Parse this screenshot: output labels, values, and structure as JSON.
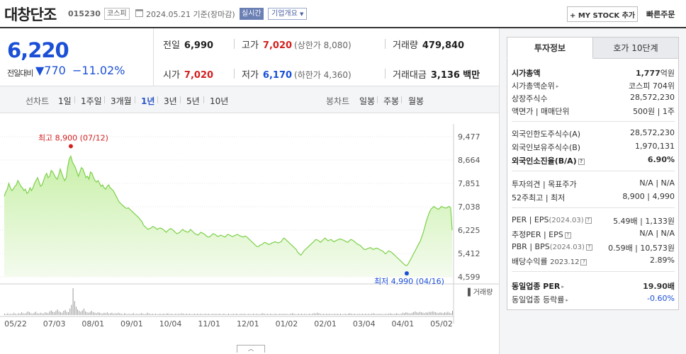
{
  "header": {
    "company": "대창단조",
    "code": "015230",
    "market": "코스피",
    "date": "2024.05.21 기준(장마감)",
    "live": "실시간",
    "overview": "기업개요",
    "mystock_btn": "+ MY STOCK 추가",
    "quick_order": "빠른주문"
  },
  "quote": {
    "price": "6,220",
    "prev_label": "전일대비",
    "change": "▼770",
    "change_rate": "−11.02%",
    "prev_close_label": "전일",
    "prev_close": "6,990",
    "high_label": "고가",
    "high": "7,020",
    "upper_limit": "(상한가 8,080)",
    "volume_label": "거래량",
    "volume": "479,840",
    "open_label": "시가",
    "open": "7,020",
    "low_label": "저가",
    "low": "6,170",
    "lower_limit": "(하한가 4,360)",
    "amount_label": "거래대금",
    "amount": "3,136",
    "amount_unit": "백만"
  },
  "period_bar": {
    "line_label": "선차트",
    "periods": [
      "1일",
      "1주일",
      "3개월",
      "1년",
      "3년",
      "5년",
      "10년"
    ],
    "active_period": "1년",
    "candle_label": "봉차트",
    "candles": [
      "일봉",
      "주봉",
      "월봉"
    ]
  },
  "chart_data": {
    "type": "area",
    "ylim": [
      4599,
      9477
    ],
    "yticks": [
      "9,477",
      "8,664",
      "7,851",
      "7,038",
      "6,225",
      "5,412",
      "4,599"
    ],
    "xticks": [
      "05/22",
      "07/03",
      "08/01",
      "09/01",
      "10/04",
      "11/01",
      "12/01",
      "01/02",
      "02/01",
      "03/04",
      "04/01",
      "05/02"
    ],
    "high_annotation": "최고 8,900 (07/12)",
    "low_annotation": "최저 4,990 (04/16)",
    "volume_label": "거래량",
    "series": [
      {
        "values": [
          7400,
          7550,
          7650,
          7850,
          7700,
          7600,
          7650,
          7750,
          7800,
          7950,
          7850,
          7750,
          7700,
          7600,
          7650,
          7500,
          7550,
          7700,
          7600,
          7700,
          7850,
          7950,
          8050,
          7900,
          7750,
          7800,
          7950,
          8100,
          8200,
          8050,
          8100,
          8300,
          8250,
          8150,
          8050,
          8000,
          8150,
          8350,
          8200,
          8050,
          7950,
          8050,
          8450,
          8700,
          8800,
          8600,
          8500,
          8400,
          8250,
          8100,
          8250,
          8400,
          8350,
          8200,
          8050,
          8100,
          8000,
          8250,
          8200,
          8050,
          7950,
          7900,
          7950,
          7850,
          7750,
          7800,
          7700,
          7650,
          7750,
          7800,
          7700,
          7650,
          7600,
          7500,
          7400,
          7300,
          7200,
          7150,
          7100,
          7050,
          7000,
          6980,
          7000,
          6950,
          6900,
          6850,
          6800,
          6750,
          6700,
          6650,
          6580,
          6520,
          6400,
          6350,
          6300,
          6250,
          6280,
          6300,
          6350,
          6330,
          6300,
          6250,
          6280,
          6300,
          6280,
          6250,
          6200,
          6150,
          6200,
          6250,
          6280,
          6250,
          6200,
          6150,
          6100,
          6120,
          6150,
          6200,
          6250,
          6200,
          6180,
          6150,
          6170,
          6250,
          6200,
          6150,
          6100,
          6080,
          6050,
          6100,
          6150,
          6120,
          6100,
          6050,
          6000,
          5980,
          6000,
          6050,
          6100,
          6080,
          6050,
          6000,
          6020,
          6050,
          6030,
          6000,
          5980,
          6050,
          6080,
          6050,
          6020,
          6000,
          6030,
          6050,
          6080,
          6050,
          6020,
          6000,
          5980,
          6020,
          6000,
          5950,
          5900,
          5850,
          5800,
          5750,
          5700,
          5650,
          5650,
          5700,
          5720,
          5750,
          5800,
          5780,
          5750,
          5720,
          5750,
          5780,
          5800,
          5820,
          5800,
          5780,
          5800,
          5820,
          5900,
          5950,
          5900,
          5850,
          5800,
          5750,
          5700,
          5650,
          5600,
          5550,
          5450,
          5400,
          5350,
          5420,
          5500,
          5550,
          5600,
          5650,
          5700,
          5750,
          5800,
          5850,
          5900,
          5880,
          5850,
          5800,
          5850,
          5900,
          5950,
          5900,
          5850,
          5880,
          5900,
          5850,
          5820,
          5850,
          5880,
          5900,
          5920,
          5900,
          5880,
          5850,
          5820,
          5800,
          5850,
          5900,
          5880,
          5850,
          5800,
          5750,
          5720,
          5700,
          5650,
          5600,
          5550,
          5550,
          5580,
          5600,
          5620,
          5580,
          5550,
          5580,
          5600,
          5580,
          5550,
          5520,
          5500,
          5450,
          5400,
          5450,
          5500,
          5480,
          5450,
          5400,
          5350,
          5300,
          5250,
          5200,
          5150,
          5100,
          5050,
          5000,
          4990,
          5050,
          5150,
          5250,
          5350,
          5450,
          5550,
          5650,
          5750,
          5850,
          6000,
          6150,
          6350,
          6550,
          6700,
          6850,
          6950,
          7000,
          7050,
          7000,
          6980,
          6950,
          7000,
          7050,
          7020,
          7000,
          6990,
          7020,
          7050,
          7000,
          6220
        ]
      }
    ],
    "volume_values": [
      3,
      2,
      4,
      2,
      3,
      2,
      5,
      3,
      2,
      4,
      3,
      6,
      4,
      3,
      5,
      8,
      6,
      4,
      3,
      5,
      7,
      4,
      3,
      5,
      4,
      3,
      6,
      5,
      4,
      8,
      10,
      7,
      6,
      9,
      12,
      8,
      6,
      5,
      9,
      11,
      7,
      6,
      14,
      22,
      58,
      30,
      18,
      12,
      9,
      7,
      10,
      14,
      8,
      6,
      5,
      7,
      9,
      6,
      5,
      4,
      6,
      5,
      4,
      3,
      5,
      4,
      6,
      3,
      4,
      5,
      3,
      4,
      3,
      5,
      4,
      3,
      2,
      4,
      3,
      2,
      3,
      2,
      3,
      4,
      2,
      3,
      2,
      3,
      4,
      3,
      2,
      3,
      5,
      3,
      2,
      3,
      2,
      3,
      2,
      2,
      3,
      2,
      3,
      2,
      3,
      4,
      2,
      3,
      2,
      2,
      3,
      2,
      3,
      2,
      4,
      3,
      2,
      3,
      2,
      3,
      2,
      2,
      3,
      2,
      3,
      2,
      3,
      2,
      2,
      3,
      2,
      3,
      2,
      2,
      3,
      2,
      3,
      2,
      3,
      2,
      2,
      3,
      2,
      2,
      3,
      2,
      2,
      3,
      2,
      3,
      2,
      2,
      3,
      2,
      3,
      2,
      2,
      3,
      2,
      2,
      3,
      2,
      3,
      2,
      2,
      3,
      4,
      3,
      2,
      3,
      2,
      3,
      2,
      2,
      3,
      2,
      2,
      3,
      2,
      3,
      2,
      3,
      2,
      2,
      3,
      4,
      3,
      2,
      2,
      3,
      2,
      3,
      2,
      3,
      2,
      2,
      3,
      2,
      3,
      4,
      3,
      5,
      4,
      3,
      2,
      3,
      2,
      3,
      2,
      3,
      2,
      2,
      3,
      2,
      3,
      2,
      3,
      2,
      2,
      3,
      2,
      3,
      4,
      3,
      2,
      3,
      2,
      2,
      3,
      2,
      3,
      2,
      3,
      2,
      3,
      2,
      3,
      4,
      3,
      2,
      3,
      2,
      3,
      2,
      2,
      3,
      2,
      3,
      4,
      3,
      2,
      3,
      4,
      3,
      2,
      3,
      5,
      4,
      6,
      5,
      4,
      3,
      5,
      6,
      8,
      6,
      5,
      7,
      6,
      5,
      4,
      6,
      5,
      7,
      6,
      8,
      7,
      6,
      5,
      4,
      6,
      5,
      4,
      6,
      5,
      7,
      5,
      4,
      9
    ]
  },
  "right_panel": {
    "tab_invest": "투자정보",
    "tab_hoga": "호가 10단계",
    "market_cap_label": "시가총액",
    "market_cap": "1,777",
    "market_cap_unit": "억원",
    "market_cap_rank_label": "시가총액순위",
    "market_cap_rank": "코스피 704위",
    "shares_label": "상장주식수",
    "shares": "28,572,230",
    "par_label": "액면가 | 매매단위",
    "par": "500원 | 1주",
    "foreign_limit_label": "외국인한도주식수(A)",
    "foreign_limit": "28,572,230",
    "foreign_hold_label": "외국인보유주식수(B)",
    "foreign_hold": "1,970,131",
    "foreign_rate_label": "외국인소진율(B/A)",
    "foreign_rate": "6.90%",
    "opinion_label": "투자의견 | 목표주가",
    "opinion": "N/A | N/A",
    "week52_label": "52주최고 | 최저",
    "week52": "8,900 | 4,990",
    "per_label": "PER | EPS",
    "per_period": "(2024.03)",
    "per": "5.49배 | 1,133원",
    "est_per_label": "추정PER | EPS",
    "est_per": "N/A | N/A",
    "pbr_label": "PBR | BPS",
    "pbr_period": "(2024.03)",
    "pbr": "0.59배 | 10,573원",
    "div_label": "배당수익률",
    "div_period": "2023.12",
    "div": "2.89%",
    "sector_per_label": "동일업종 PER",
    "sector_per": "19.90배",
    "sector_rate_label": "동일업종 등락률",
    "sector_rate": "-0.60%"
  },
  "colors": {
    "up": "#d42020",
    "down": "#1a4fd6",
    "line": "#7dd04a"
  }
}
